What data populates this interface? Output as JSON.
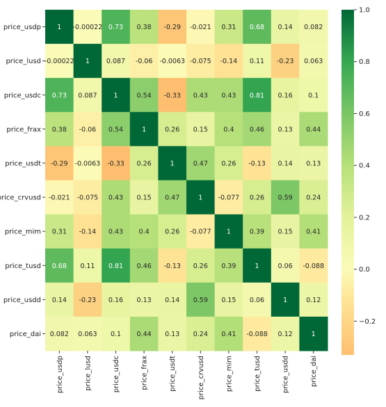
{
  "chart_data": {
    "type": "heatmap",
    "title": "",
    "xlabel": "",
    "ylabel": "",
    "rows": [
      "price_usdp",
      "price_lusd",
      "price_usdc",
      "price_frax",
      "price_usdt",
      "price_crvusd",
      "price_mim",
      "price_tusd",
      "price_usdd",
      "price_dai"
    ],
    "columns": [
      "price_usdp",
      "price_lusd",
      "price_usdc",
      "price_frax",
      "price_usdt",
      "price_crvusd",
      "price_mim",
      "price_tusd",
      "price_usdd",
      "price_dai"
    ],
    "values": [
      [
        1,
        -0.00022,
        0.73,
        0.38,
        -0.29,
        -0.021,
        0.31,
        0.68,
        0.14,
        0.082
      ],
      [
        -0.00022,
        1,
        0.087,
        -0.06,
        -0.0063,
        -0.075,
        -0.14,
        0.11,
        -0.23,
        0.063
      ],
      [
        0.73,
        0.087,
        1,
        0.54,
        -0.33,
        0.43,
        0.43,
        0.81,
        0.16,
        0.1
      ],
      [
        0.38,
        -0.06,
        0.54,
        1,
        0.26,
        0.15,
        0.4,
        0.46,
        0.13,
        0.44
      ],
      [
        -0.29,
        -0.0063,
        -0.33,
        0.26,
        1,
        0.47,
        0.26,
        -0.13,
        0.14,
        0.13
      ],
      [
        -0.021,
        -0.075,
        0.43,
        0.15,
        0.47,
        1,
        -0.077,
        0.26,
        0.59,
        0.24
      ],
      [
        0.31,
        -0.14,
        0.43,
        0.4,
        0.26,
        -0.077,
        1,
        0.39,
        0.15,
        0.41
      ],
      [
        0.68,
        0.11,
        0.81,
        0.46,
        -0.13,
        0.26,
        0.39,
        1,
        0.06,
        -0.088
      ],
      [
        0.14,
        -0.23,
        0.16,
        0.13,
        0.14,
        0.59,
        0.15,
        0.06,
        1,
        0.12
      ],
      [
        0.082,
        0.063,
        0.1,
        0.44,
        0.13,
        0.24,
        0.41,
        -0.088,
        0.12,
        1
      ]
    ],
    "labels": [
      [
        "1",
        "-0.00022",
        "0.73",
        "0.38",
        "-0.29",
        "-0.021",
        "0.31",
        "0.68",
        "0.14",
        "0.082"
      ],
      [
        "-0.00022",
        "1",
        "0.087",
        "-0.06",
        "-0.0063",
        "-0.075",
        "-0.14",
        "0.11",
        "-0.23",
        "0.063"
      ],
      [
        "0.73",
        "0.087",
        "1",
        "0.54",
        "-0.33",
        "0.43",
        "0.43",
        "0.81",
        "0.16",
        "0.1"
      ],
      [
        "0.38",
        "-0.06",
        "0.54",
        "1",
        "0.26",
        "0.15",
        "0.4",
        "0.46",
        "0.13",
        "0.44"
      ],
      [
        "-0.29",
        "-0.0063",
        "-0.33",
        "0.26",
        "1",
        "0.47",
        "0.26",
        "-0.13",
        "0.14",
        "0.13"
      ],
      [
        "-0.021",
        "-0.075",
        "0.43",
        "0.15",
        "0.47",
        "1",
        "-0.077",
        "0.26",
        "0.59",
        "0.24"
      ],
      [
        "0.31",
        "-0.14",
        "0.43",
        "0.4",
        "0.26",
        "-0.077",
        "1",
        "0.39",
        "0.15",
        "0.41"
      ],
      [
        "0.68",
        "0.11",
        "0.81",
        "0.46",
        "-0.13",
        "0.26",
        "0.39",
        "1",
        "0.06",
        "-0.088"
      ],
      [
        "0.14",
        "-0.23",
        "0.16",
        "0.13",
        "0.14",
        "0.59",
        "0.15",
        "0.06",
        "1",
        "0.12"
      ],
      [
        "0.082",
        "0.063",
        "0.1",
        "0.44",
        "0.13",
        "0.24",
        "0.41",
        "-0.088",
        "0.12",
        "1"
      ]
    ],
    "colorbar": {
      "range": [
        -0.33,
        1.0
      ],
      "ticks": [
        1.0,
        0.8,
        0.6,
        0.4,
        0.2,
        0.0,
        -0.2
      ],
      "tick_labels": [
        "1.0",
        "0.8",
        "0.6",
        "0.4",
        "0.2",
        "0.0",
        "−0.2"
      ]
    },
    "colormap": {
      "name": "RdYlGn",
      "stops": [
        {
          "v": -0.33,
          "color": "#fdbf6f"
        },
        {
          "v": -0.1,
          "color": "#fee89a"
        },
        {
          "v": 0.0,
          "color": "#fbfbb8"
        },
        {
          "v": 0.2,
          "color": "#e3f29a"
        },
        {
          "v": 0.4,
          "color": "#b6e07a"
        },
        {
          "v": 0.6,
          "color": "#7ac666"
        },
        {
          "v": 0.8,
          "color": "#36a852"
        },
        {
          "v": 1.0,
          "color": "#006837"
        }
      ]
    },
    "grid": false,
    "legend": "colorbar-right"
  }
}
